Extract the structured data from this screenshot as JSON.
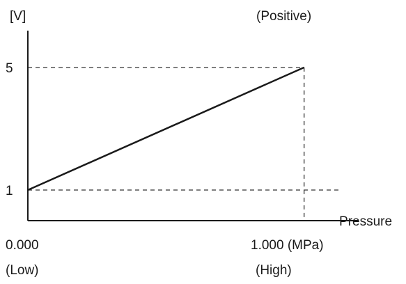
{
  "chart_data": {
    "type": "line",
    "title": "",
    "ylabel": "[V]",
    "xlabel": "Pressure",
    "annotation_top": "(Positive)",
    "x_ticks": [
      {
        "value": 0.0,
        "label": "0.000",
        "sublabel": "(Low)"
      },
      {
        "value": 1.0,
        "label": "1.000 (MPa)",
        "sublabel": "(High)"
      }
    ],
    "y_ticks": [
      {
        "value": 1,
        "label": "1"
      },
      {
        "value": 5,
        "label": "5"
      }
    ],
    "series": [
      {
        "points": [
          {
            "x": 0.0,
            "y": 1
          },
          {
            "x": 1.0,
            "y": 5
          }
        ]
      }
    ],
    "xlim": [
      0,
      1.2
    ],
    "ylim": [
      0,
      6.2
    ],
    "grid": false,
    "colors": {
      "line": "#1a1a1a",
      "axis": "#1a1a1a",
      "guide": "#333333"
    }
  }
}
